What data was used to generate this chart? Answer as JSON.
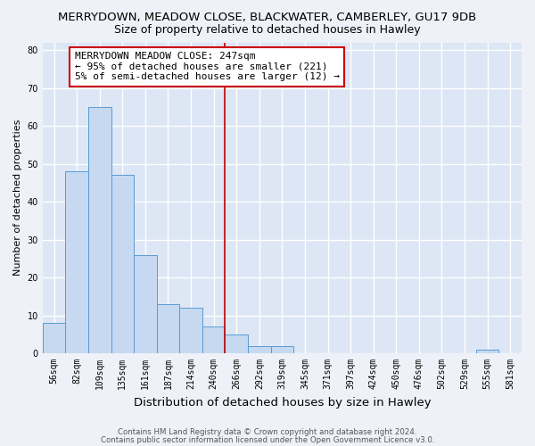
{
  "title": "MERRYDOWN, MEADOW CLOSE, BLACKWATER, CAMBERLEY, GU17 9DB",
  "subtitle": "Size of property relative to detached houses in Hawley",
  "xlabel": "Distribution of detached houses by size in Hawley",
  "ylabel": "Number of detached properties",
  "bins": [
    "56sqm",
    "82sqm",
    "109sqm",
    "135sqm",
    "161sqm",
    "187sqm",
    "214sqm",
    "240sqm",
    "266sqm",
    "292sqm",
    "319sqm",
    "345sqm",
    "371sqm",
    "397sqm",
    "424sqm",
    "450sqm",
    "476sqm",
    "502sqm",
    "529sqm",
    "555sqm",
    "581sqm"
  ],
  "values": [
    8,
    48,
    65,
    47,
    26,
    13,
    12,
    7,
    5,
    2,
    2,
    0,
    0,
    0,
    0,
    0,
    0,
    0,
    0,
    1,
    0
  ],
  "bar_color": "#c6d9f0",
  "bar_edge_color": "#5a9bd4",
  "ylim": [
    0,
    82
  ],
  "yticks": [
    0,
    10,
    20,
    30,
    40,
    50,
    60,
    70,
    80
  ],
  "vline_color": "#c00000",
  "annotation_text": "MERRYDOWN MEADOW CLOSE: 247sqm\n← 95% of detached houses are smaller (221)\n5% of semi-detached houses are larger (12) →",
  "bg_color": "#eef2f8",
  "plot_bg": "#dce6f5",
  "footer1": "Contains HM Land Registry data © Crown copyright and database right 2024.",
  "footer2": "Contains public sector information licensed under the Open Government Licence v3.0.",
  "title_fontsize": 9.5,
  "subtitle_fontsize": 9,
  "tick_fontsize": 7,
  "xlabel_fontsize": 9.5,
  "ylabel_fontsize": 8,
  "annot_fontsize": 8,
  "grid_color": "#ffffff"
}
